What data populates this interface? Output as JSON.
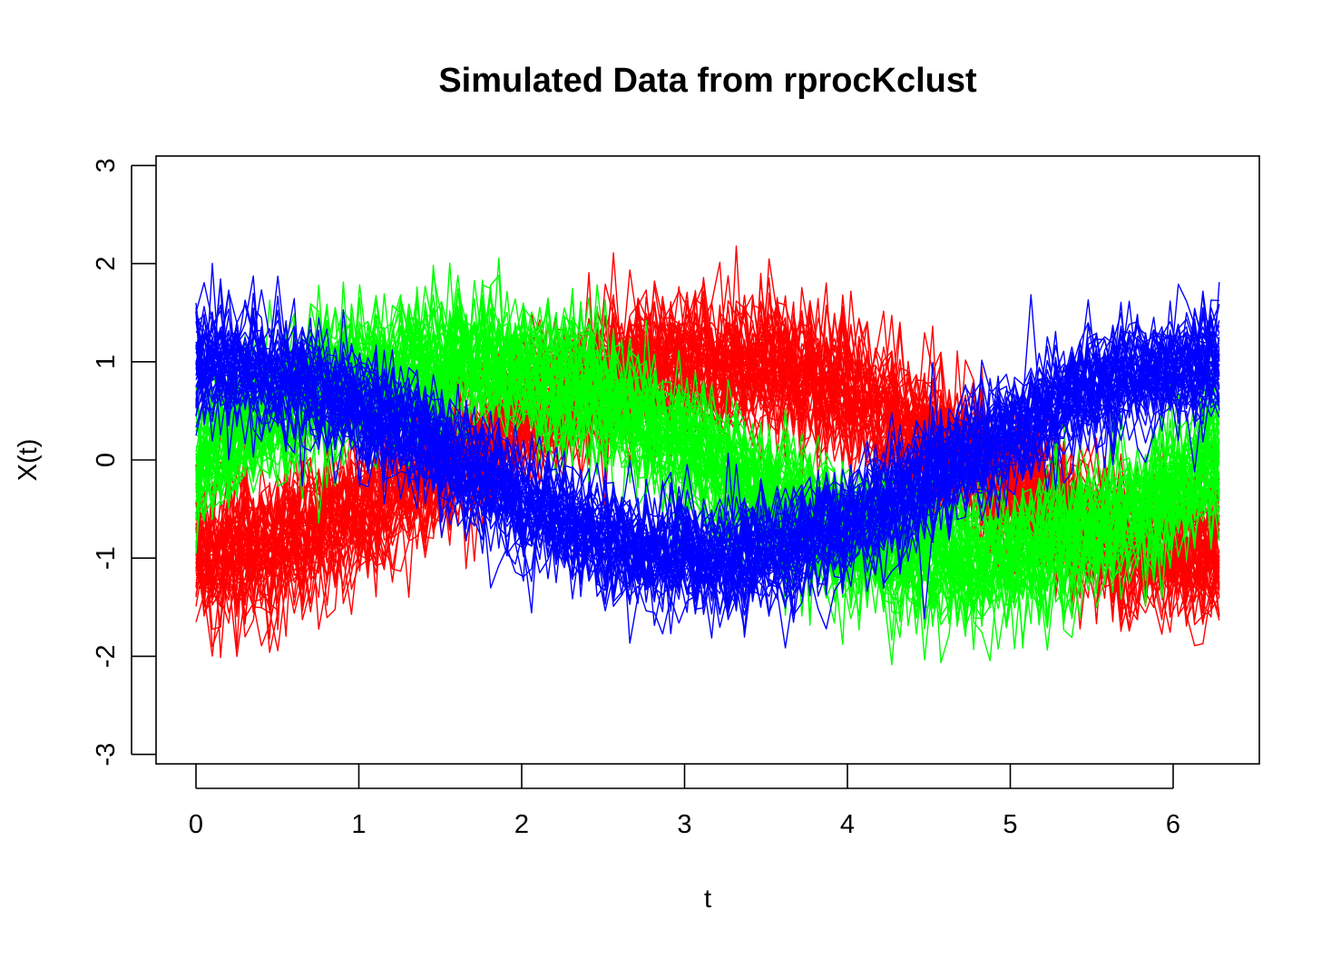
{
  "chart_data": {
    "type": "line",
    "title": "Simulated Data from rprocKclust",
    "xlabel": "t",
    "ylabel": "X(t)",
    "xlim": [
      0,
      6.283
    ],
    "ylim": [
      -3,
      3
    ],
    "x_ticks": [
      0,
      1,
      2,
      3,
      4,
      5,
      6
    ],
    "y_ticks": [
      -3,
      -2,
      -1,
      0,
      1,
      2,
      3
    ],
    "x_tick_labels": [
      "0",
      "1",
      "2",
      "3",
      "4",
      "5",
      "6"
    ],
    "y_tick_labels": [
      "-3",
      "-2",
      "-1",
      "0",
      "1",
      "2",
      "3"
    ],
    "grid": false,
    "x_grid": {
      "start": 0,
      "end": 6.283,
      "points": 126
    },
    "series": [
      {
        "color": "#ff0000",
        "mean_function": "-cos(t)",
        "curves": 50,
        "noise_sd": 0.35
      },
      {
        "color": "#00ff00",
        "mean_function": "sin(t)",
        "curves": 50,
        "noise_sd": 0.35
      },
      {
        "color": "#0000ff",
        "mean_function": "cos(t)",
        "curves": 50,
        "noise_sd": 0.28
      }
    ]
  }
}
